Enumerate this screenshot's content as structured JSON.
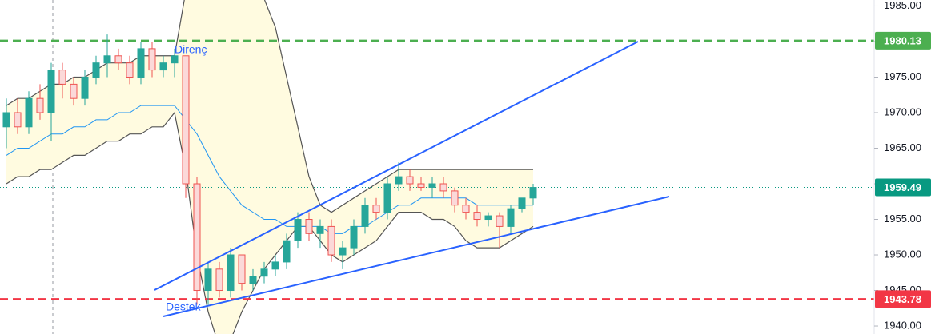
{
  "chart_data": {
    "type": "candlestick",
    "categories": [
      null,
      null,
      null,
      null,
      null,
      null,
      null,
      null,
      null,
      null,
      null,
      null,
      null,
      null,
      null,
      null,
      null,
      null,
      null,
      null,
      null,
      null,
      null,
      null,
      null,
      null,
      null,
      null,
      null,
      null,
      null,
      null,
      null,
      null,
      null,
      null,
      null,
      null,
      null,
      null,
      null,
      null,
      null,
      null,
      null,
      null,
      null,
      null
    ],
    "open": [
      1968,
      1970,
      1968,
      1972,
      1970,
      1976,
      1974,
      1972,
      1975,
      1977,
      1978,
      1977,
      1975,
      1979,
      1976,
      1977,
      1978,
      1960,
      1945,
      1948,
      1945,
      1950,
      1946,
      1947,
      1948,
      1949,
      1952,
      1955,
      1953,
      1954,
      1950,
      1951,
      1954,
      1957,
      1956,
      1960,
      1961,
      1960,
      1959.5,
      1960,
      1959,
      1957,
      1956,
      1955,
      1955.5,
      1954,
      1956.5,
      1958
    ],
    "high": [
      1972,
      1972,
      1973,
      1974,
      1977,
      1977,
      1975,
      1976,
      1978,
      1981,
      1979,
      1978,
      1980,
      1980,
      1978,
      1979,
      1978,
      1961,
      1949,
      1949,
      1951,
      1950,
      1948,
      1949,
      1950,
      1953,
      1956,
      1956,
      1955,
      1955,
      1952,
      1955,
      1958,
      1958,
      1961,
      1963,
      1962,
      1961,
      1961,
      1961,
      1959.5,
      1958,
      1957,
      1956,
      1956,
      1957,
      1958,
      1960
    ],
    "low": [
      1965,
      1967,
      1967,
      1969,
      1966,
      1972,
      1971,
      1971,
      1974,
      1975,
      1976,
      1974,
      1974,
      1975,
      1975,
      1975,
      1958,
      1943,
      1943,
      1944,
      1944,
      1945,
      1945,
      1946,
      1947,
      1948,
      1951,
      1952,
      1951,
      1949,
      1948,
      1950,
      1953,
      1955,
      1955,
      1959,
      1959,
      1959,
      1958,
      1958,
      1956,
      1955,
      1954,
      1954,
      1951,
      1953,
      1956,
      1957
    ],
    "close": [
      1970,
      1968,
      1972,
      1970,
      1976,
      1974,
      1972,
      1975,
      1977,
      1978,
      1977,
      1975,
      1979,
      1976,
      1977,
      1978,
      1960,
      1945,
      1948,
      1945,
      1950,
      1946,
      1947,
      1948,
      1949,
      1952,
      1955,
      1953,
      1954,
      1950,
      1951,
      1954,
      1957,
      1956,
      1960,
      1961,
      1960,
      1959.5,
      1960,
      1959,
      1957,
      1956,
      1955,
      1955.5,
      1954,
      1956.5,
      1958,
      1959.49
    ],
    "bands": {
      "upper": [
        1971,
        1972,
        1972,
        1973,
        1974,
        1974,
        1975,
        1975,
        1976,
        1977,
        1977,
        1977,
        1978,
        1978,
        1978,
        1978,
        1987,
        1992,
        1994,
        1994,
        1994,
        1993,
        1990,
        1986,
        1982,
        1975,
        1968,
        1961,
        1957,
        1956,
        1957,
        1958,
        1959,
        1960,
        1961,
        1962,
        1962,
        1962,
        1962,
        1962,
        1962,
        1962,
        1962,
        1962,
        1962,
        1962,
        1962,
        1962
      ],
      "middle": [
        1964,
        1965,
        1965,
        1966,
        1967,
        1967,
        1968,
        1968,
        1969,
        1969,
        1970,
        1970,
        1971,
        1971,
        1971,
        1971,
        1969,
        1967,
        1964,
        1961,
        1959,
        1957,
        1956,
        1955,
        1955,
        1954,
        1954,
        1954,
        1954,
        1953,
        1953,
        1954,
        1954,
        1955,
        1956,
        1957,
        1957,
        1958,
        1958,
        1958,
        1958,
        1958,
        1957,
        1957,
        1957,
        1957,
        1957,
        1957
      ],
      "lower": [
        1960,
        1961,
        1961,
        1962,
        1962,
        1963,
        1964,
        1964,
        1965,
        1966,
        1966,
        1967,
        1967,
        1968,
        1968,
        1970,
        1962,
        1950,
        1942,
        1937,
        1938,
        1942,
        1945,
        1948,
        1950,
        1952,
        1954,
        1954,
        1952,
        1950,
        1949,
        1950,
        1951,
        1952,
        1954,
        1956,
        1956,
        1956,
        1955,
        1955,
        1954,
        1952,
        1951,
        1951,
        1951,
        1952,
        1953,
        1954
      ]
    },
    "up_color": "#26a69a",
    "down_color": "#ef5350",
    "ylim": [
      1938.88,
      1985.84
    ],
    "yticks": [
      {
        "value": 1985,
        "label": "1985.00"
      },
      {
        "value": 1980,
        "label": "1980.00"
      },
      {
        "value": 1975,
        "label": "1975.00"
      },
      {
        "value": 1970,
        "label": "1970.00"
      },
      {
        "value": 1965,
        "label": "1965.00"
      },
      {
        "value": 1960,
        "label": "1960.00"
      },
      {
        "value": 1955,
        "label": "1955.00"
      },
      {
        "value": 1950,
        "label": "1950.00"
      },
      {
        "value": 1945,
        "label": "1945.00"
      },
      {
        "value": 1940,
        "label": "1940.00"
      }
    ],
    "levels": [
      {
        "value": 1980.13,
        "color": "#4caf50",
        "style": "dashed"
      },
      {
        "value": 1959.49,
        "color": "#089981",
        "style": "dotted"
      },
      {
        "value": 1943.78,
        "color": "#f23645",
        "style": "dashed"
      }
    ],
    "annotations": [
      {
        "text": "Direnç"
      },
      {
        "text": "Destek"
      }
    ]
  }
}
